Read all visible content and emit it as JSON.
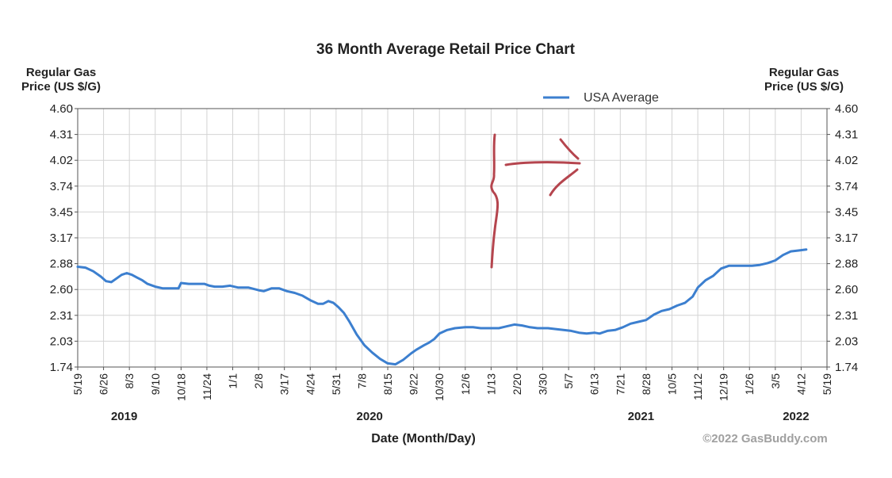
{
  "chart_data": {
    "type": "line",
    "title": "36 Month Average Retail Price Chart",
    "ylabel_left": [
      "Regular Gas",
      "Price (US $/G)"
    ],
    "ylabel_right": [
      "Regular Gas",
      "Price (US $/G)"
    ],
    "xlabel": "Date (Month/Day)",
    "watermark": "©2022 GasBuddy.com",
    "legend": "USA Average",
    "series_color": "#3c7fcf",
    "grid": true,
    "y_ticks": [
      "4.60",
      "4.31",
      "4.02",
      "3.74",
      "3.45",
      "3.17",
      "2.88",
      "2.60",
      "2.31",
      "2.03",
      "1.74"
    ],
    "ylim": [
      1.74,
      4.6
    ],
    "x_ticks": [
      "5/19",
      "6/26",
      "8/3",
      "9/10",
      "10/18",
      "11/24",
      "1/1",
      "2/8",
      "3/17",
      "4/24",
      "5/31",
      "7/8",
      "8/15",
      "9/22",
      "10/30",
      "12/6",
      "1/13",
      "2/20",
      "3/30",
      "5/7",
      "6/13",
      "7/21",
      "8/28",
      "10/5",
      "11/12",
      "12/19",
      "1/26",
      "3/5",
      "4/12",
      "5/19"
    ],
    "years": [
      {
        "label": "2019",
        "tick_index": 1.8
      },
      {
        "label": "2020",
        "tick_index": 11.3
      },
      {
        "label": "2021",
        "tick_index": 21.8
      },
      {
        "label": "2022",
        "tick_index": 27.8
      }
    ],
    "series": [
      {
        "name": "USA Average",
        "points": [
          [
            0,
            2.85
          ],
          [
            0.3,
            2.84
          ],
          [
            0.6,
            2.8
          ],
          [
            0.9,
            2.74
          ],
          [
            1.1,
            2.69
          ],
          [
            1.3,
            2.68
          ],
          [
            1.5,
            2.72
          ],
          [
            1.7,
            2.76
          ],
          [
            1.9,
            2.78
          ],
          [
            2.1,
            2.76
          ],
          [
            2.3,
            2.73
          ],
          [
            2.5,
            2.7
          ],
          [
            2.7,
            2.66
          ],
          [
            3.0,
            2.63
          ],
          [
            3.3,
            2.61
          ],
          [
            3.6,
            2.61
          ],
          [
            3.9,
            2.61
          ],
          [
            4.0,
            2.67
          ],
          [
            4.3,
            2.66
          ],
          [
            4.6,
            2.66
          ],
          [
            4.9,
            2.66
          ],
          [
            5.1,
            2.64
          ],
          [
            5.3,
            2.63
          ],
          [
            5.6,
            2.63
          ],
          [
            5.9,
            2.64
          ],
          [
            6.2,
            2.62
          ],
          [
            6.6,
            2.62
          ],
          [
            7.0,
            2.59
          ],
          [
            7.2,
            2.58
          ],
          [
            7.5,
            2.61
          ],
          [
            7.8,
            2.61
          ],
          [
            8.1,
            2.58
          ],
          [
            8.4,
            2.56
          ],
          [
            8.7,
            2.53
          ],
          [
            9.0,
            2.48
          ],
          [
            9.3,
            2.44
          ],
          [
            9.5,
            2.44
          ],
          [
            9.7,
            2.47
          ],
          [
            9.9,
            2.45
          ],
          [
            10.1,
            2.4
          ],
          [
            10.3,
            2.34
          ],
          [
            10.5,
            2.25
          ],
          [
            10.8,
            2.1
          ],
          [
            11.1,
            1.98
          ],
          [
            11.4,
            1.9
          ],
          [
            11.7,
            1.83
          ],
          [
            12.0,
            1.78
          ],
          [
            12.3,
            1.77
          ],
          [
            12.6,
            1.82
          ],
          [
            12.9,
            1.89
          ],
          [
            13.1,
            1.93
          ],
          [
            13.4,
            1.98
          ],
          [
            13.6,
            2.01
          ],
          [
            13.8,
            2.05
          ],
          [
            14.0,
            2.11
          ],
          [
            14.3,
            2.15
          ],
          [
            14.6,
            2.17
          ],
          [
            15.0,
            2.18
          ],
          [
            15.3,
            2.18
          ],
          [
            15.6,
            2.17
          ],
          [
            16.0,
            2.17
          ],
          [
            16.3,
            2.17
          ],
          [
            16.6,
            2.19
          ],
          [
            16.9,
            2.21
          ],
          [
            17.2,
            2.2
          ],
          [
            17.5,
            2.18
          ],
          [
            17.8,
            2.17
          ],
          [
            18.2,
            2.17
          ],
          [
            18.5,
            2.16
          ],
          [
            18.8,
            2.15
          ],
          [
            19.1,
            2.14
          ],
          [
            19.4,
            2.12
          ],
          [
            19.7,
            2.11
          ],
          [
            20.0,
            2.12
          ],
          [
            20.2,
            2.11
          ],
          [
            20.5,
            2.14
          ],
          [
            20.8,
            2.15
          ],
          [
            21.1,
            2.18
          ],
          [
            21.4,
            2.22
          ],
          [
            21.7,
            2.24
          ],
          [
            22.0,
            2.26
          ],
          [
            22.3,
            2.32
          ],
          [
            22.6,
            2.36
          ],
          [
            22.9,
            2.38
          ],
          [
            23.2,
            2.42
          ],
          [
            23.5,
            2.45
          ],
          [
            23.8,
            2.52
          ],
          [
            24.0,
            2.62
          ],
          [
            24.3,
            2.7
          ],
          [
            24.6,
            2.75
          ],
          [
            24.9,
            2.83
          ],
          [
            25.2,
            2.86
          ],
          [
            25.5,
            2.86
          ],
          [
            25.8,
            2.86
          ],
          [
            26.1,
            2.86
          ],
          [
            26.4,
            2.87
          ],
          [
            26.7,
            2.89
          ],
          [
            27.0,
            2.92
          ],
          [
            27.3,
            2.98
          ],
          [
            27.6,
            3.02
          ],
          [
            27.9,
            3.03
          ],
          [
            28.2,
            3.04
          ]
        ]
      }
    ]
  }
}
